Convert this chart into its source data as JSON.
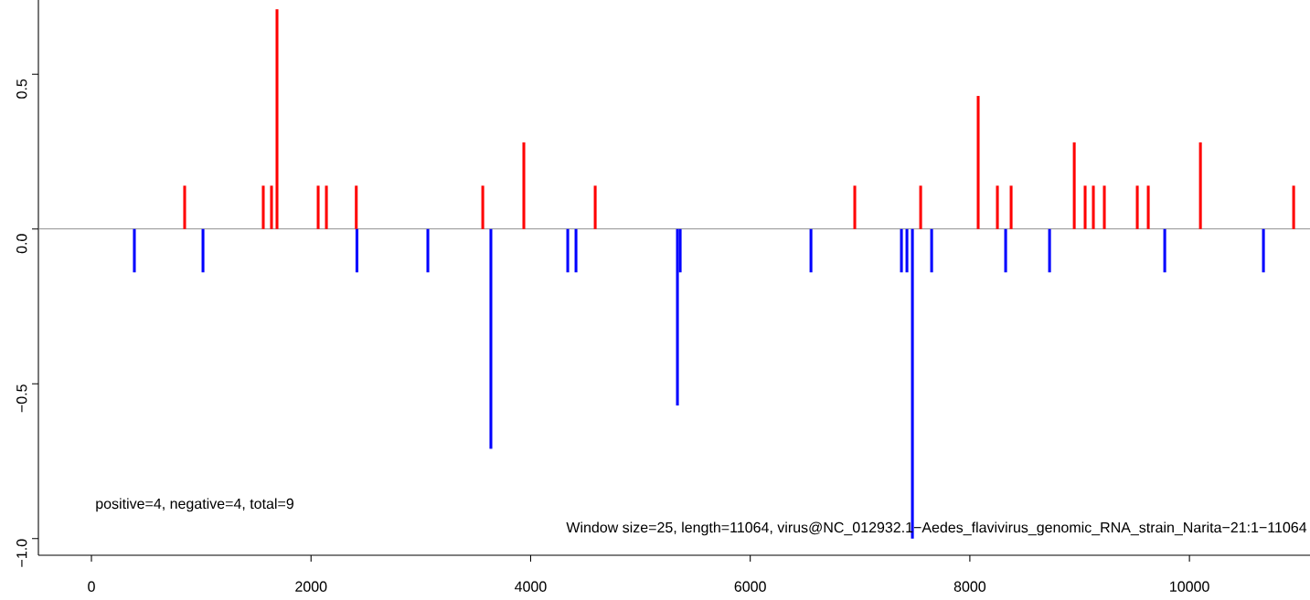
{
  "chart_data": {
    "type": "bar",
    "x": [
      391,
      849,
      1016,
      1565,
      1640,
      1690,
      2065,
      2140,
      2412,
      2418,
      3064,
      3564,
      3638,
      3938,
      4338,
      4413,
      4588,
      5337,
      5362,
      6553,
      6952,
      7377,
      7427,
      7477,
      7552,
      7652,
      8076,
      8251,
      8326,
      8376,
      8726,
      8951,
      9050,
      9125,
      9225,
      9525,
      9625,
      9775,
      10100,
      10674,
      10949
    ],
    "values": [
      -0.14,
      0.14,
      -0.14,
      0.14,
      0.14,
      0.71,
      0.14,
      0.14,
      0.14,
      -0.14,
      -0.14,
      0.14,
      -0.71,
      0.28,
      -0.14,
      -0.14,
      0.14,
      -0.57,
      -0.14,
      -0.14,
      0.14,
      -0.14,
      -0.14,
      -1.0,
      0.14,
      -0.14,
      0.43,
      0.14,
      -0.14,
      0.14,
      -0.14,
      0.28,
      0.14,
      0.14,
      0.14,
      0.14,
      0.14,
      -0.14,
      0.28,
      -0.14,
      0.14
    ],
    "colors": [
      "#0000ff",
      "#ff0000",
      "#0000ff",
      "#ff0000",
      "#ff0000",
      "#ff0000",
      "#ff0000",
      "#ff0000",
      "#ff0000",
      "#0000ff",
      "#0000ff",
      "#ff0000",
      "#0000ff",
      "#ff0000",
      "#0000ff",
      "#0000ff",
      "#ff0000",
      "#0000ff",
      "#0000ff",
      "#0000ff",
      "#ff0000",
      "#0000ff",
      "#0000ff",
      "#0000ff",
      "#ff0000",
      "#0000ff",
      "#ff0000",
      "#ff0000",
      "#0000ff",
      "#ff0000",
      "#0000ff",
      "#ff0000",
      "#ff0000",
      "#ff0000",
      "#ff0000",
      "#ff0000",
      "#ff0000",
      "#0000ff",
      "#ff0000",
      "#0000ff",
      "#ff0000"
    ],
    "xlim": [
      -483,
      11098
    ],
    "ylim": [
      -1.054,
      0.74
    ],
    "xticks": [
      0,
      2000,
      4000,
      6000,
      8000,
      10000
    ],
    "yticks": [
      {
        "value": -1.0,
        "label": "−1.0"
      },
      {
        "value": -0.5,
        "label": "−0.5"
      },
      {
        "value": 0,
        "label": "0.0"
      },
      {
        "value": 0.5,
        "label": "0.5"
      }
    ],
    "ref_lines": [
      {
        "axis": "y",
        "value": 0,
        "color": "#808080"
      }
    ],
    "annotations": [
      "positive=4, negative=4, total=9",
      "Window size=25, length=11064, virus@NC_012932.1−Aedes_flavivirus_genomic_RNA_strain_Narita−21:1−11064"
    ]
  }
}
